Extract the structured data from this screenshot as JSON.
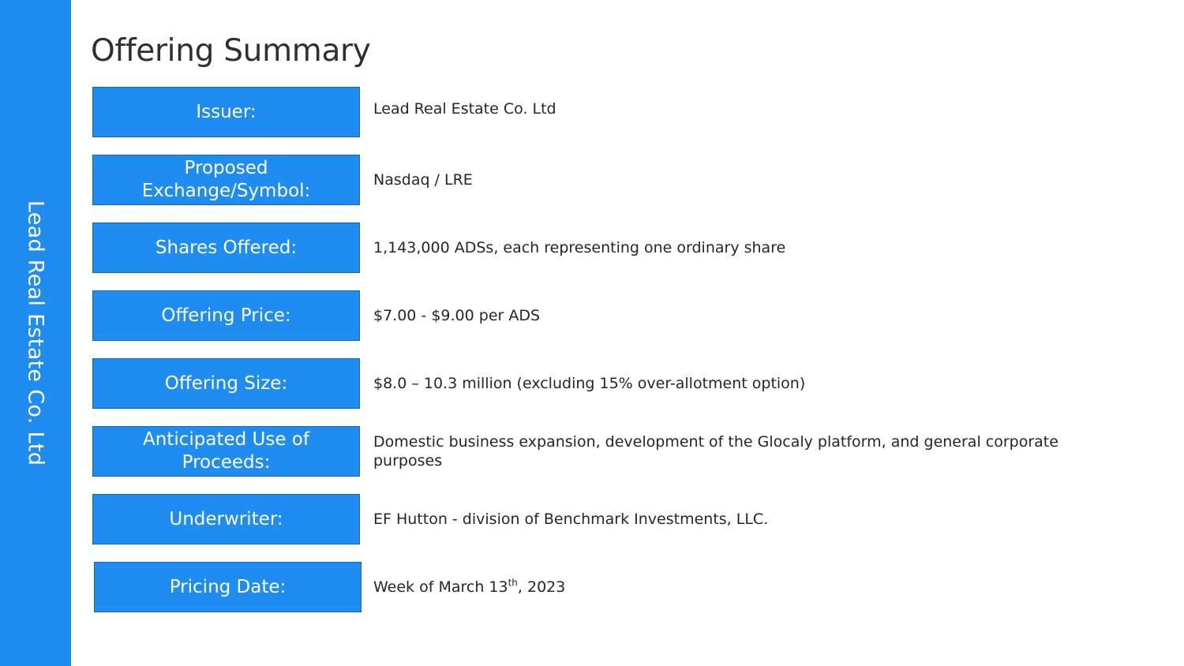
{
  "sidebar": {
    "text": "Lead Real Estate Co. Ltd"
  },
  "title": "Offering Summary",
  "rows": [
    {
      "label": "Issuer:",
      "value": "Lead Real Estate Co. Ltd"
    },
    {
      "label_line1": "Proposed",
      "label_line2": "Exchange/Symbol:",
      "value": "Nasdaq / LRE"
    },
    {
      "label": "Shares Offered:",
      "value": "1,143,000 ADSs, each representing one ordinary share"
    },
    {
      "label": "Offering Price:",
      "value": "$7.00 - $9.00 per ADS"
    },
    {
      "label": "Offering Size:",
      "value": "$8.0 – 10.3 million (excluding 15% over-allotment option)"
    },
    {
      "label_line1": "Anticipated Use of",
      "label_line2": "Proceeds:",
      "value": "Domestic business expansion, development of the Glocaly platform, and general corporate purposes"
    },
    {
      "label": "Underwriter:",
      "value": "EF Hutton - division of Benchmark Investments, LLC."
    },
    {
      "label": "Pricing Date:",
      "value_pre": "Week of March 13",
      "value_sup": "th",
      "value_post": ", 2023"
    }
  ]
}
